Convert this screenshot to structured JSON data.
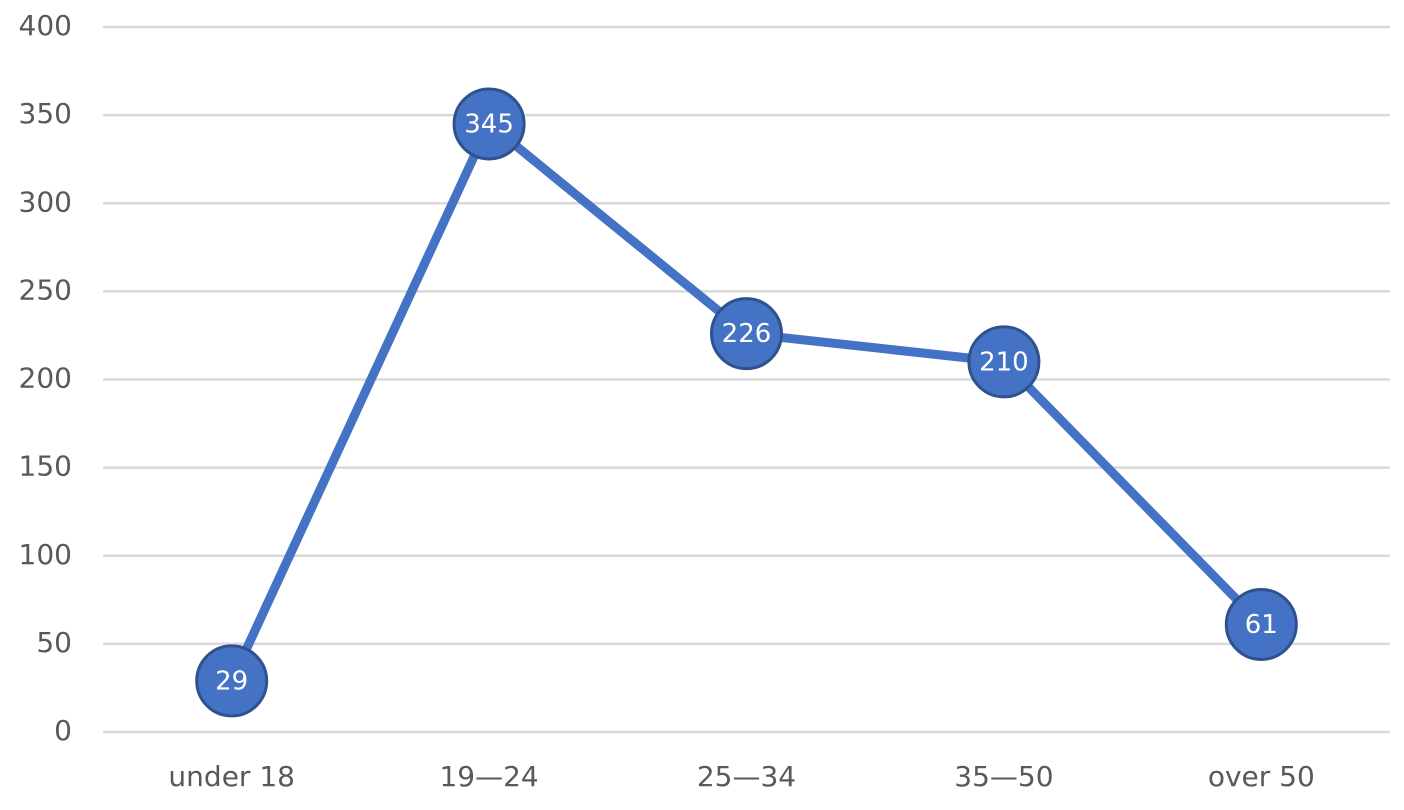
{
  "chart_data": {
    "type": "line",
    "categories": [
      "under 18",
      "19—24",
      "25—34",
      "35—50",
      "over 50"
    ],
    "values": [
      29,
      345,
      226,
      210,
      61
    ],
    "color": "#4472c4",
    "ylim": [
      0,
      400
    ],
    "yticks": [
      0,
      50,
      100,
      150,
      200,
      250,
      300,
      350,
      400
    ],
    "grid": true
  }
}
